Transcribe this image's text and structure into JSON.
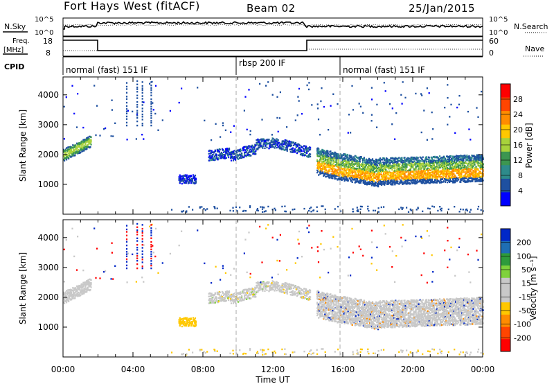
{
  "header": {
    "station": "Fort Hays West (fitACF)",
    "beam": "Beam 02",
    "date": "25/Jan/2015"
  },
  "strips": {
    "nsky_label": "N.Sky",
    "nsky_ticks": [
      "10^5",
      "10^0"
    ],
    "nsearch_label": "N.Search",
    "nsearch_ticks": [
      "10^5",
      "10^0"
    ],
    "freq_label_1": "Freq.",
    "freq_label_2": "[MHz]",
    "freq_ticks": [
      "18",
      "8"
    ],
    "nave_label": "Nave",
    "nave_ticks": [
      "60",
      "0"
    ]
  },
  "cpid": {
    "label": "CPID",
    "segments": [
      {
        "text": "normal (fast) 151 IF"
      },
      {
        "text": "rbsp 200 IF"
      },
      {
        "text": "normal (fast) 151 IF"
      }
    ]
  },
  "chart_data": [
    {
      "type": "heatmap",
      "quantity": "Power",
      "xlabel": "",
      "ylabel": "Slant Range [km]",
      "x_ticks": [
        "00:00",
        "04:00",
        "08:00",
        "12:00",
        "16:00",
        "20:00",
        "00:00"
      ],
      "y_ticks": [
        1000,
        2000,
        3000,
        4000
      ],
      "ylim": [
        0,
        4600
      ],
      "colorbar_label": "Power [dB]",
      "colorbar_ticks": [
        "28",
        "24",
        "20",
        "16",
        "12",
        "8",
        "4"
      ],
      "colorbar_colors": [
        "#ff0000",
        "#ff4500",
        "#ff8c00",
        "#ffc800",
        "#a8d23c",
        "#3c9650",
        "#2e8b8b",
        "#1e50a0",
        "#0000ff"
      ]
    },
    {
      "type": "heatmap",
      "quantity": "Velocity",
      "xlabel": "Time UT",
      "ylabel": "Slant Range [km]",
      "x_ticks": [
        "00:00",
        "04:00",
        "08:00",
        "12:00",
        "16:00",
        "20:00",
        "00:00"
      ],
      "y_ticks": [
        1000,
        2000,
        3000,
        4000
      ],
      "ylim": [
        0,
        4600
      ],
      "colorbar_label": "Velocity [m s⁻¹]",
      "colorbar_ticks": [
        "200",
        "100",
        "50",
        "15",
        "-15",
        "-50",
        "-100",
        "-200"
      ],
      "colorbar_colors": [
        "#0028c8",
        "#1e6eb4",
        "#2e9b3c",
        "#7fd23c",
        "#c8c8c8",
        "#c8c8c8",
        "#ffc800",
        "#ff8c00",
        "#ff4500",
        "#ff0000"
      ]
    }
  ]
}
